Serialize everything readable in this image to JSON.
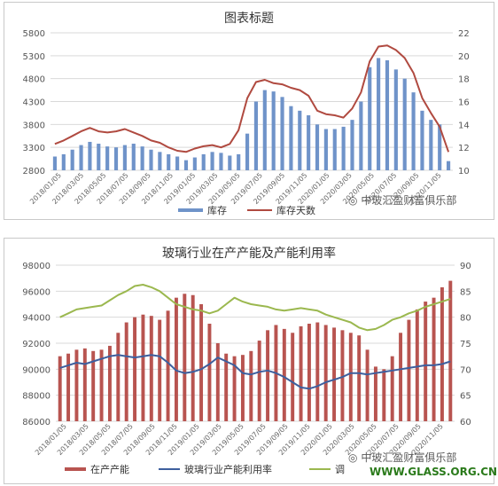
{
  "chart_data": [
    {
      "type": "bar+line",
      "title": "图表标题",
      "left_axis": {
        "min": 2800,
        "max": 5800,
        "ticks": [
          2800,
          3300,
          3800,
          4300,
          4800,
          5300,
          5800
        ]
      },
      "right_axis": {
        "min": 10,
        "max": 22,
        "ticks": [
          10,
          12,
          14,
          16,
          18,
          20,
          22
        ]
      },
      "x_tick_labels": [
        "2018/01/05",
        "2018/03/05",
        "2018/05/05",
        "2018/07/05",
        "2018/09/05",
        "2018/11/05",
        "2019/01/05",
        "2019/03/05",
        "2019/05/05",
        "2019/07/05",
        "2019/09/05",
        "2019/11/05",
        "2020/01/05",
        "2020/03/05",
        "2020/05/05",
        "2020/07/05",
        "2020/09/05",
        "2020/11/05"
      ],
      "series": [
        {
          "name": "库存",
          "kind": "bar",
          "axis": "left",
          "color": "#6f93c9",
          "values": [
            3100,
            3150,
            3250,
            3350,
            3420,
            3380,
            3320,
            3300,
            3350,
            3380,
            3320,
            3250,
            3200,
            3150,
            3100,
            3020,
            3080,
            3150,
            3200,
            3180,
            3120,
            3150,
            3600,
            4300,
            4550,
            4520,
            4400,
            4200,
            4100,
            4000,
            3800,
            3700,
            3700,
            3750,
            3900,
            4300,
            5050,
            5250,
            5200,
            5000,
            4800,
            4500,
            4100,
            3900,
            3800,
            3000
          ]
        },
        {
          "name": "库存天数",
          "kind": "line",
          "axis": "right",
          "color": "#b04a40",
          "values": [
            12.3,
            12.6,
            13.0,
            13.4,
            13.7,
            13.4,
            13.3,
            13.4,
            13.6,
            13.3,
            13.0,
            12.6,
            12.4,
            12.0,
            11.7,
            11.6,
            11.9,
            12.1,
            12.2,
            12.0,
            12.3,
            13.5,
            16.3,
            17.7,
            17.9,
            17.6,
            17.5,
            17.2,
            17.0,
            16.5,
            15.2,
            14.9,
            14.8,
            14.6,
            15.4,
            16.8,
            19.5,
            20.8,
            20.9,
            20.5,
            19.8,
            18.5,
            16.3,
            15.0,
            13.8,
            11.6
          ]
        }
      ]
    },
    {
      "type": "bar+line",
      "title": "玻璃行业在产产能及产能利用率",
      "left_axis": {
        "min": 86000,
        "max": 98000,
        "ticks": [
          86000,
          88000,
          90000,
          92000,
          94000,
          96000,
          98000
        ]
      },
      "right_axis": {
        "min": 60,
        "max": 90,
        "ticks": [
          60,
          65,
          70,
          75,
          80,
          85,
          90
        ]
      },
      "x_tick_labels": [
        "2018/01/05",
        "2018/03/05",
        "2018/05/05",
        "2018/07/05",
        "2018/09/05",
        "2018/11/05",
        "2019/01/05",
        "2019/03/05",
        "2019/05/05",
        "2019/07/05",
        "2019/09/05",
        "2019/11/05",
        "2020/01/05",
        "2020/03/05",
        "2020/05/05",
        "2020/07/05",
        "2020/09/05",
        "2020/11/05"
      ],
      "series": [
        {
          "name": "在产产能",
          "kind": "bar",
          "axis": "left",
          "color": "#b85450",
          "values": [
            91000,
            91200,
            91500,
            91600,
            91400,
            91500,
            91800,
            92800,
            93600,
            94000,
            94200,
            94100,
            93800,
            94500,
            95500,
            95800,
            95700,
            95000,
            93500,
            92000,
            91200,
            91000,
            91100,
            91400,
            92200,
            93000,
            93400,
            93100,
            92800,
            93300,
            93500,
            93600,
            93400,
            93200,
            93000,
            92800,
            92600,
            91500,
            90200,
            90000,
            91000,
            92800,
            93800,
            94600,
            95200,
            95500,
            96300,
            96800
          ]
        },
        {
          "name": "玻璃行业产能利用率",
          "kind": "line",
          "axis": "left",
          "color": "#3d5f9e",
          "values": [
            90100,
            90300,
            90500,
            90400,
            90600,
            90800,
            91000,
            91100,
            91000,
            90900,
            91000,
            91100,
            91000,
            90500,
            89900,
            89700,
            89800,
            90000,
            90400,
            90900,
            90600,
            90300,
            89700,
            89600,
            89800,
            89900,
            89700,
            89400,
            89000,
            88600,
            88500,
            88700,
            89000,
            89200,
            89400,
            89700,
            89700,
            89600,
            89700,
            89800,
            89900,
            90000,
            90100,
            90200,
            90300,
            90300,
            90400,
            90600
          ]
        },
        {
          "name": "调",
          "kind": "line",
          "axis": "left",
          "color": "#9bb84f",
          "values": [
            94000,
            94300,
            94600,
            94700,
            94800,
            94900,
            95300,
            95700,
            96000,
            96400,
            96500,
            96300,
            96000,
            95500,
            95000,
            94800,
            94600,
            94500,
            94300,
            94500,
            95000,
            95500,
            95200,
            95000,
            94900,
            94800,
            94600,
            94500,
            94600,
            94700,
            94600,
            94500,
            94200,
            94000,
            93800,
            93600,
            93200,
            93000,
            93100,
            93400,
            93800,
            94000,
            94300,
            94500,
            94800,
            95000,
            95200,
            95400
          ]
        }
      ]
    }
  ],
  "watermarks": {
    "top": "中玻汇盈财富俱乐部",
    "bottom_cn": "中玻汇盈财富俱乐部",
    "bottom_url": "WWW.GLASS.ORG.CN"
  }
}
